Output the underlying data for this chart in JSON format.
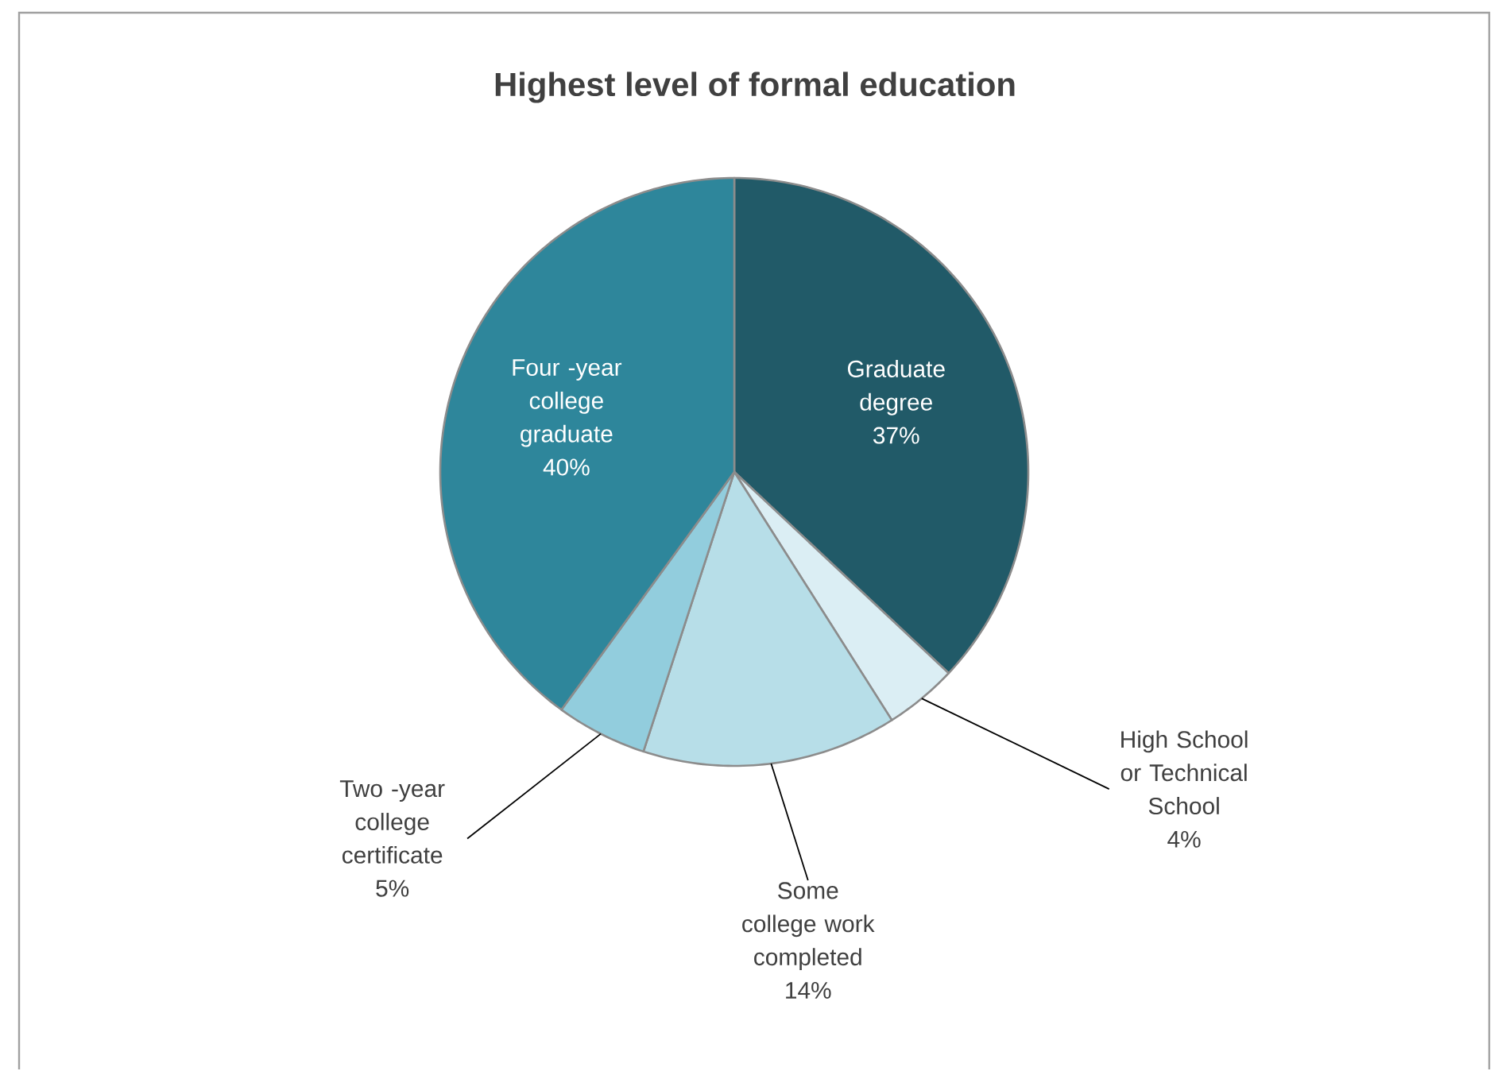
{
  "chart_data": {
    "type": "pie",
    "title": "Highest level of formal education",
    "categories": [
      "Graduate degree",
      "High School or Technical School",
      "Some college work completed",
      "Two -year college certificate",
      "Four -year college graduate"
    ],
    "values": [
      37,
      4,
      14,
      5,
      40
    ],
    "value_labels": [
      "37%",
      "4%",
      "14%",
      "5%",
      "40%"
    ],
    "colors": [
      "#215a68",
      "#dbeef4",
      "#b7dee8",
      "#92cddd",
      "#2e869b"
    ]
  }
}
